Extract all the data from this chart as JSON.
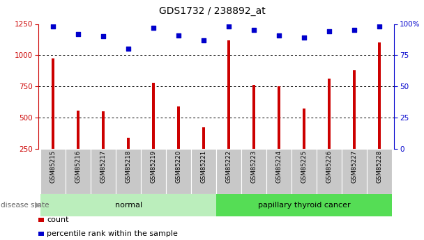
{
  "title": "GDS1732 / 238892_at",
  "samples": [
    "GSM85215",
    "GSM85216",
    "GSM85217",
    "GSM85218",
    "GSM85219",
    "GSM85220",
    "GSM85221",
    "GSM85222",
    "GSM85223",
    "GSM85224",
    "GSM85225",
    "GSM85226",
    "GSM85227",
    "GSM85228"
  ],
  "bar_values": [
    975,
    555,
    550,
    340,
    780,
    590,
    420,
    1120,
    760,
    750,
    575,
    810,
    880,
    1105
  ],
  "percentile_values": [
    98,
    92,
    90,
    80,
    97,
    91,
    87,
    98,
    95,
    91,
    89,
    94,
    95,
    98
  ],
  "groups": [
    {
      "label": "normal",
      "start": 0,
      "end": 7,
      "color": "#bbeebc"
    },
    {
      "label": "papillary thyroid cancer",
      "start": 7,
      "end": 14,
      "color": "#55dd55"
    }
  ],
  "bar_color": "#cc0000",
  "dot_color": "#0000cc",
  "ylim_left": [
    250,
    1250
  ],
  "ylim_right": [
    0,
    100
  ],
  "yticks_left": [
    250,
    500,
    750,
    1000,
    1250
  ],
  "yticks_right": [
    0,
    25,
    50,
    75,
    100
  ],
  "ytick_labels_right": [
    "0",
    "25",
    "50",
    "75",
    "100%"
  ],
  "grid_values": [
    500,
    750,
    1000
  ],
  "left_axis_color": "#cc0000",
  "right_axis_color": "#0000cc",
  "disease_state_label": "disease state",
  "legend_count_label": "count",
  "legend_percentile_label": "percentile rank within the sample",
  "background_color": "#ffffff",
  "tick_bg_color": "#c8c8c8",
  "bar_width": 0.12
}
